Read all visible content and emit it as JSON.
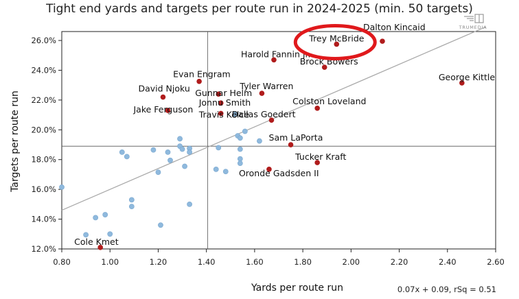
{
  "chart_data": {
    "type": "scatter",
    "title": "Tight end yards and targets per route run in 2024-2025 (min. 50 targets)",
    "xlabel": "Yards per route run",
    "ylabel": "Targets per route run",
    "xlim": [
      0.8,
      2.6
    ],
    "ylim": [
      12.0,
      26.6
    ],
    "xticks": [
      "0.80",
      "1.00",
      "1.20",
      "1.40",
      "1.60",
      "1.80",
      "2.00",
      "2.20",
      "2.40",
      "2.60"
    ],
    "yticks": [
      "12.0%",
      "14.0%",
      "16.0%",
      "18.0%",
      "20.0%",
      "22.0%",
      "24.0%",
      "26.0%"
    ],
    "grid": false,
    "reference_lines": {
      "x": 1.405,
      "y": 18.9
    },
    "regression": {
      "label": "0.07x + 0.09, rSq = 0.51",
      "slope": 0.07,
      "intercept": 0.09
    },
    "logo_text": "TRUMEDIA",
    "colors": {
      "highlight": "#b01c1c",
      "other": "#8fb9dd",
      "reg_line": "#aaaaaa",
      "circle": "#e0191c"
    },
    "highlighted": [
      {
        "name": "Dalton Kincaid",
        "x": 2.13,
        "y": 25.95
      },
      {
        "name": "Trey McBride",
        "x": 1.94,
        "y": 25.75
      },
      {
        "name": "Harold Fannin Jr.",
        "x": 1.68,
        "y": 24.7
      },
      {
        "name": "Brock Bowers",
        "x": 1.89,
        "y": 24.2
      },
      {
        "name": "George Kittle",
        "x": 2.46,
        "y": 23.15
      },
      {
        "name": "Evan Engram",
        "x": 1.37,
        "y": 23.25
      },
      {
        "name": "Tyler Warren",
        "x": 1.63,
        "y": 22.45
      },
      {
        "name": "Gunnar Helm",
        "x": 1.45,
        "y": 22.4
      },
      {
        "name": "David Njoku",
        "x": 1.22,
        "y": 22.2
      },
      {
        "name": "Jonnu Smith",
        "x": 1.46,
        "y": 21.8
      },
      {
        "name": "Colston Loveland",
        "x": 1.86,
        "y": 21.45
      },
      {
        "name": "Jake Ferguson",
        "x": 1.24,
        "y": 21.3
      },
      {
        "name": "Travis Kelce",
        "x": 1.46,
        "y": 21.1
      },
      {
        "name": "Dallas Goedert",
        "x": 1.67,
        "y": 20.65
      },
      {
        "name": "Sam LaPorta",
        "x": 1.75,
        "y": 19.0
      },
      {
        "name": "Tucker Kraft",
        "x": 1.86,
        "y": 17.8
      },
      {
        "name": "Oronde Gadsden II",
        "x": 1.66,
        "y": 17.35
      },
      {
        "name": "Cole Kmet",
        "x": 0.96,
        "y": 12.1
      }
    ],
    "others": [
      {
        "x": 0.8,
        "y": 16.15
      },
      {
        "x": 0.9,
        "y": 12.95
      },
      {
        "x": 0.94,
        "y": 14.1
      },
      {
        "x": 0.98,
        "y": 14.3
      },
      {
        "x": 1.0,
        "y": 13.0
      },
      {
        "x": 1.05,
        "y": 18.5
      },
      {
        "x": 1.07,
        "y": 18.2
      },
      {
        "x": 1.09,
        "y": 15.3
      },
      {
        "x": 1.09,
        "y": 14.85
      },
      {
        "x": 1.18,
        "y": 18.65
      },
      {
        "x": 1.2,
        "y": 17.15
      },
      {
        "x": 1.21,
        "y": 13.6
      },
      {
        "x": 1.24,
        "y": 18.5
      },
      {
        "x": 1.25,
        "y": 17.95
      },
      {
        "x": 1.29,
        "y": 19.4
      },
      {
        "x": 1.29,
        "y": 18.9
      },
      {
        "x": 1.3,
        "y": 18.7
      },
      {
        "x": 1.31,
        "y": 17.55
      },
      {
        "x": 1.33,
        "y": 18.75
      },
      {
        "x": 1.33,
        "y": 18.5
      },
      {
        "x": 1.33,
        "y": 15.0
      },
      {
        "x": 1.44,
        "y": 17.35
      },
      {
        "x": 1.45,
        "y": 18.8
      },
      {
        "x": 1.48,
        "y": 17.2
      },
      {
        "x": 1.52,
        "y": 21.05
      },
      {
        "x": 1.53,
        "y": 19.6
      },
      {
        "x": 1.54,
        "y": 19.45
      },
      {
        "x": 1.54,
        "y": 18.7
      },
      {
        "x": 1.54,
        "y": 18.05
      },
      {
        "x": 1.54,
        "y": 17.75
      },
      {
        "x": 1.56,
        "y": 19.9
      },
      {
        "x": 1.62,
        "y": 19.25
      }
    ]
  }
}
